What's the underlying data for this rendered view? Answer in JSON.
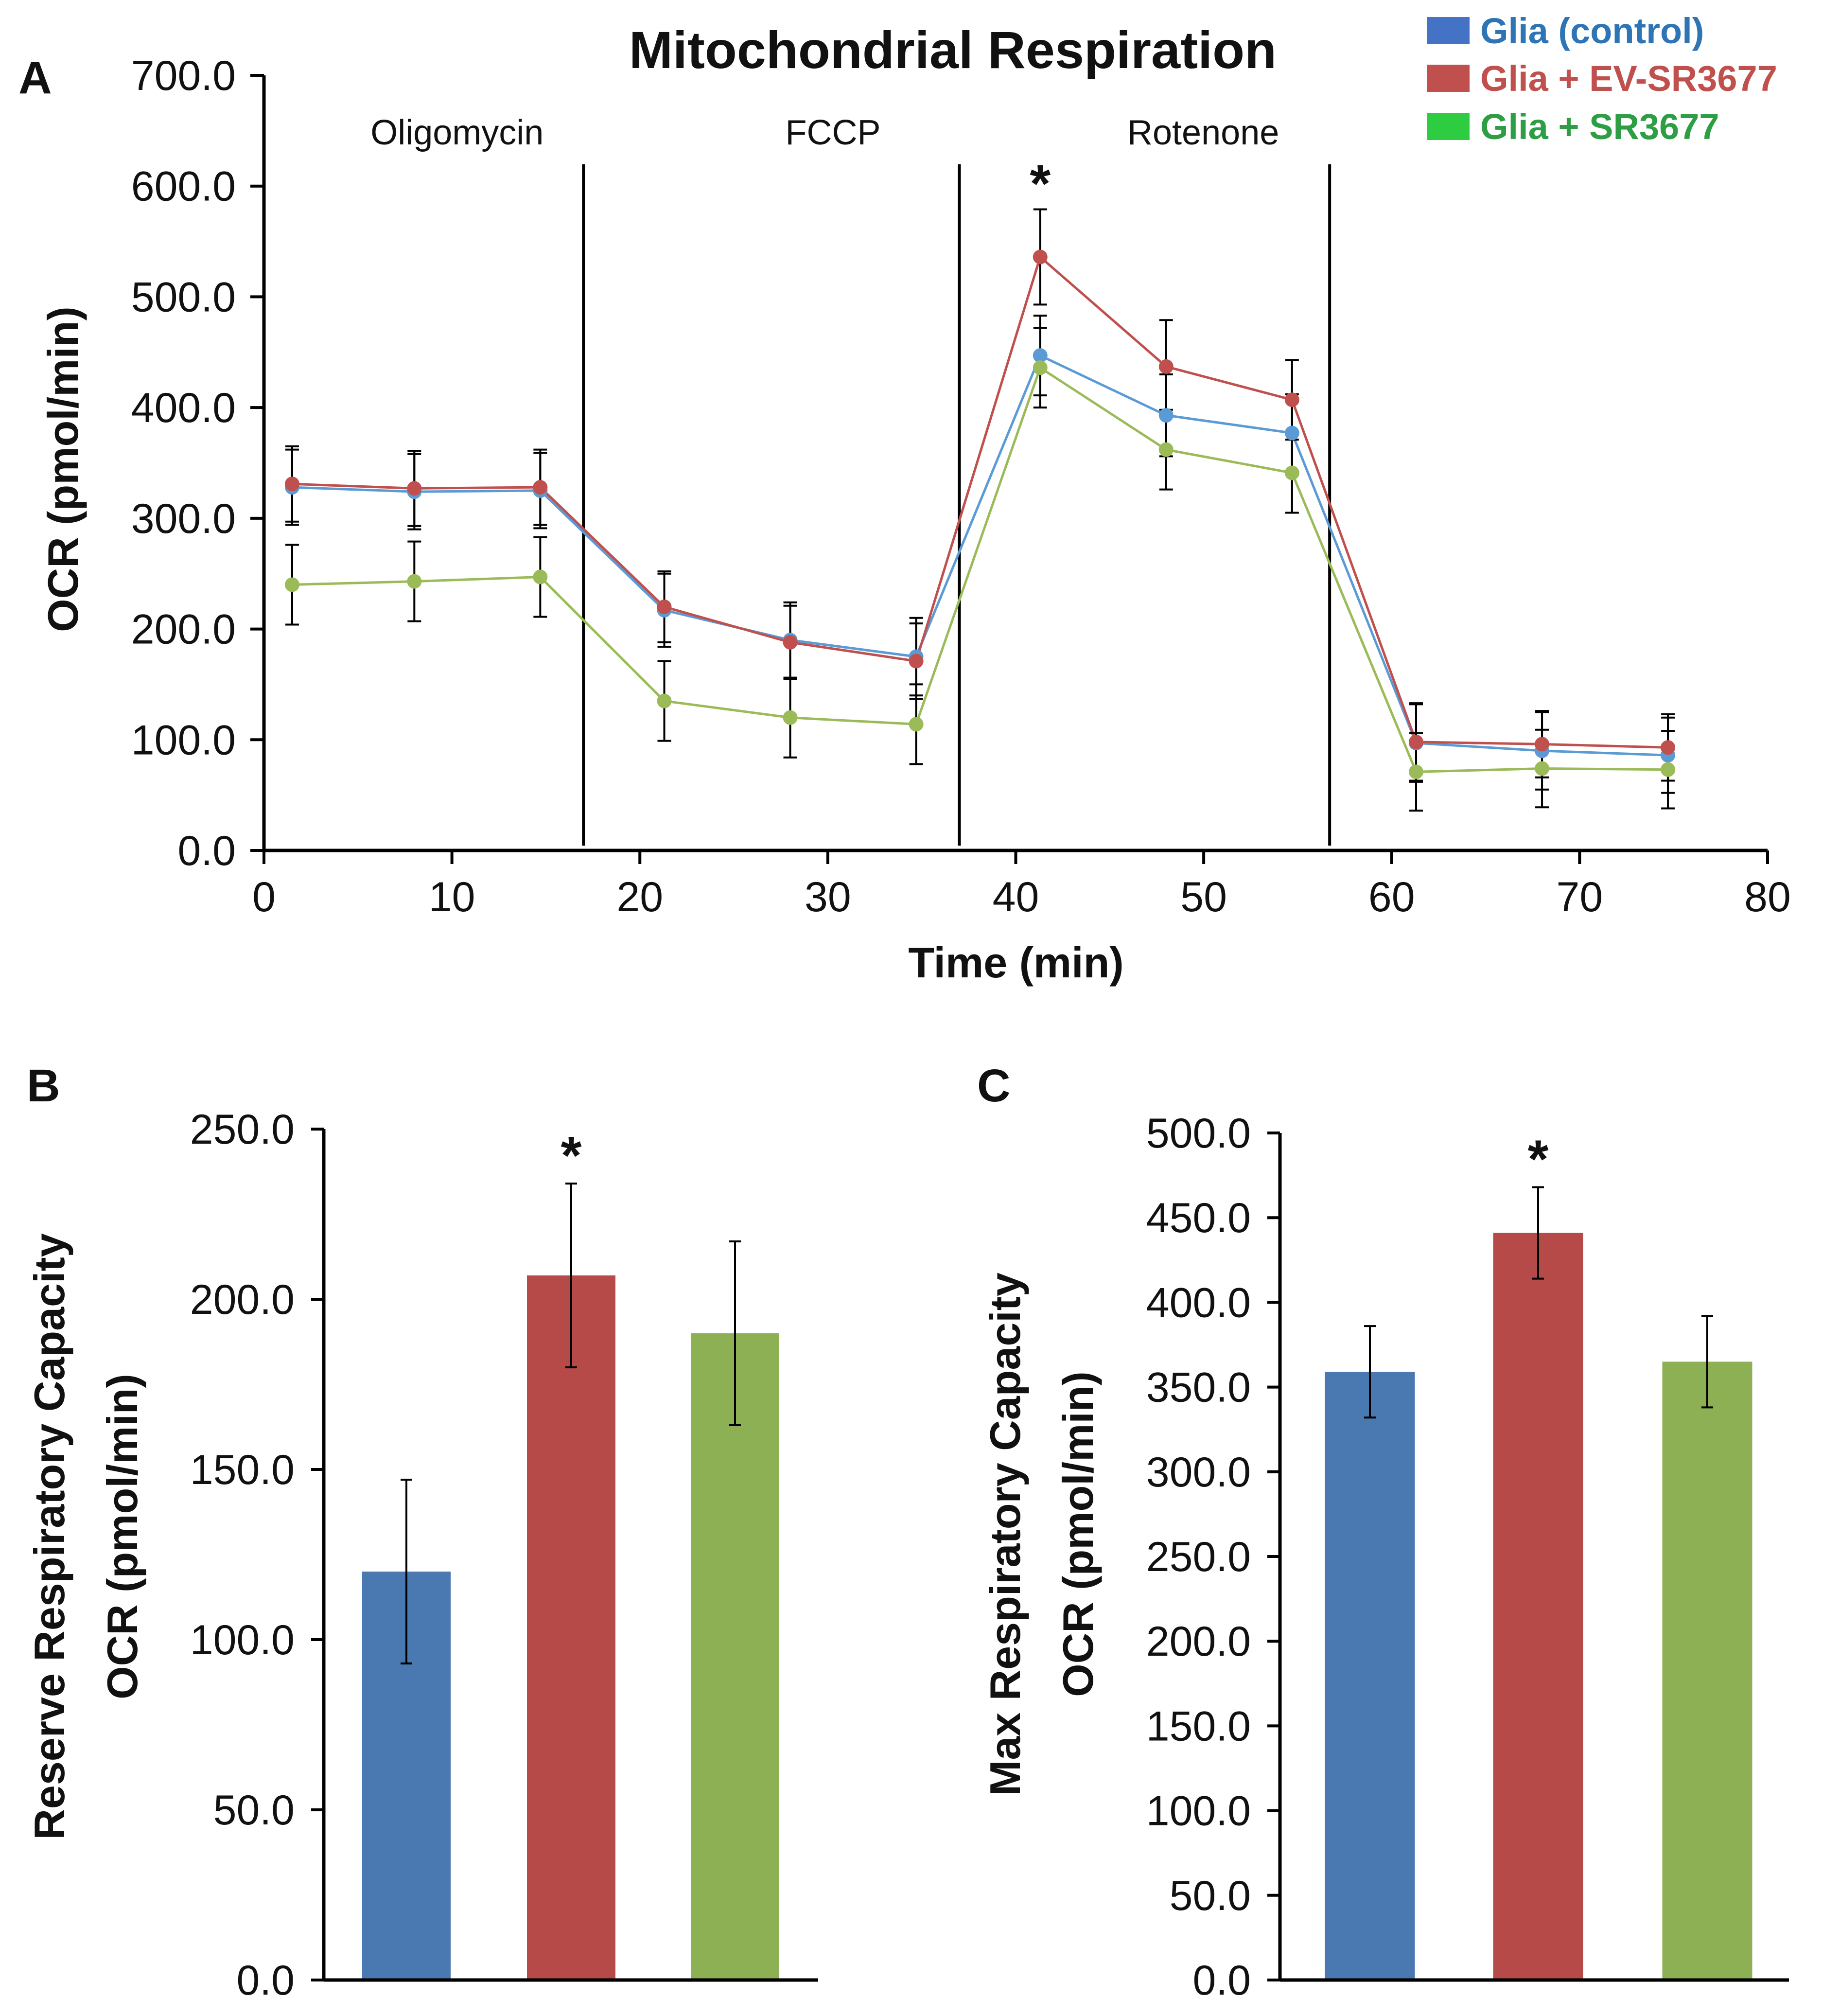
{
  "chart_data": [
    {
      "panel": "A",
      "type": "line",
      "title": "Mitochondrial Respiration",
      "xlabel": "Time (min)",
      "ylabel": "OCR (pmol/min)",
      "xlim": [
        0,
        80
      ],
      "ylim": [
        0,
        700
      ],
      "x_ticks": [
        0,
        10,
        20,
        30,
        40,
        50,
        60,
        70,
        80
      ],
      "y_ticks": [
        "0.0",
        "100.0",
        "200.0",
        "300.0",
        "400.0",
        "500.0",
        "600.0",
        "700.0"
      ],
      "x": [
        1.5,
        8,
        14.7,
        21.3,
        28,
        34.7,
        41.3,
        48,
        54.7,
        61.3,
        68,
        74.7
      ],
      "events": [
        {
          "label": "Oligomycin",
          "x": 17
        },
        {
          "label": "FCCP",
          "x": 37
        },
        {
          "label": "Rotenone",
          "x": 56.7
        }
      ],
      "series": [
        {
          "name": "Glia (control)",
          "color": "#5b9bd5",
          "legend_color": "#4472c4",
          "text_color": "#2e75b6",
          "values": [
            328,
            324,
            325,
            217,
            190,
            175,
            447,
            393,
            377,
            97,
            90,
            86
          ],
          "errors": [
            34,
            34,
            34,
            33,
            34,
            35,
            36,
            37,
            35,
            35,
            35,
            34
          ]
        },
        {
          "name": "Glia + EV-SR3677",
          "color": "#c0504d",
          "legend_color": "#c0504d",
          "text_color": "#c0504d",
          "values": [
            331,
            327,
            328,
            220,
            188,
            171,
            536,
            437,
            407,
            98,
            96,
            93
          ],
          "errors": [
            34,
            34,
            34,
            32,
            33,
            34,
            43,
            42,
            36,
            35,
            30,
            30
          ]
        },
        {
          "name": "Glia + SR3677",
          "color": "#9bbb59",
          "legend_color": "#2ecc40",
          "text_color": "#2e9e44",
          "values": [
            240,
            243,
            247,
            135,
            120,
            114,
            436,
            362,
            341,
            71,
            74,
            73
          ],
          "errors": [
            36,
            36,
            36,
            36,
            36,
            36,
            36,
            36,
            36,
            35,
            35,
            35
          ]
        }
      ],
      "annotations": [
        {
          "text": "*",
          "x": 41.3,
          "y": 590
        }
      ]
    },
    {
      "panel": "B",
      "type": "bar",
      "ylabel_line1": "Reserve  Respiratory Capacity",
      "ylabel_line2": "OCR (pmol/min)",
      "ylim": [
        0,
        250
      ],
      "y_ticks": [
        "0.0",
        "50.0",
        "100.0",
        "150.0",
        "200.0",
        "250.0"
      ],
      "categories": [
        "Glia (control)",
        "Glia + EV-SR3677",
        "Glia + SR3677"
      ],
      "values": [
        120,
        207,
        190
      ],
      "errors": [
        27,
        27,
        27
      ],
      "colors": [
        "#4a78b0",
        "#b64a48",
        "#8eb054"
      ],
      "annotations": [
        {
          "text": "*",
          "category_index": 1
        }
      ]
    },
    {
      "panel": "C",
      "type": "bar",
      "ylabel_line1": "Max  Respiratory Capacity",
      "ylabel_line2": "OCR (pmol/min)",
      "ylim": [
        0,
        500
      ],
      "y_ticks": [
        "0.0",
        "50.0",
        "100.0",
        "150.0",
        "200.0",
        "250.0",
        "300.0",
        "350.0",
        "400.0",
        "450.0",
        "500.0"
      ],
      "categories": [
        "Glia (control)",
        "Glia + EV-SR3677",
        "Glia + SR3677"
      ],
      "values": [
        359,
        441,
        365
      ],
      "errors": [
        27,
        27,
        27
      ],
      "colors": [
        "#4a78b0",
        "#b64a48",
        "#8eb054"
      ],
      "annotations": [
        {
          "text": "*",
          "category_index": 1
        }
      ]
    }
  ]
}
